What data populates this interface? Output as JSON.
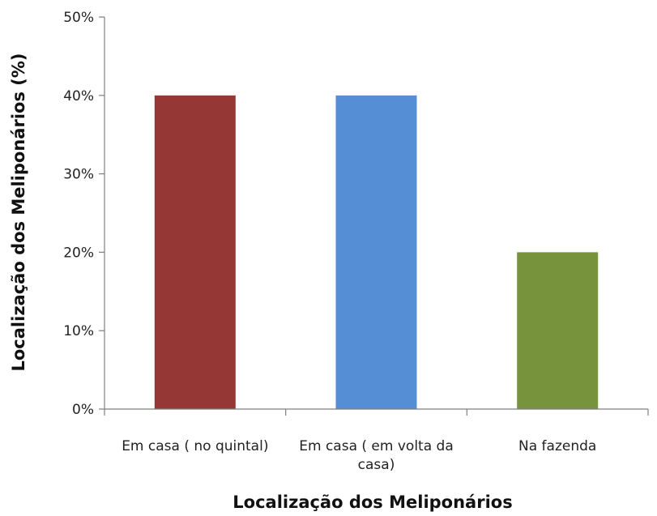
{
  "chart_data": {
    "type": "bar",
    "title": "",
    "xlabel": "Localização dos Meliponários",
    "ylabel": "Localização dos Meliponários  (%)",
    "categories": [
      [
        "Em casa ( no quintal)"
      ],
      [
        "Em casa ( em volta da",
        "casa)"
      ],
      [
        "Na fazenda"
      ]
    ],
    "values": [
      0.4,
      0.4,
      0.2
    ],
    "colors": [
      "#953735",
      "#558ED5",
      "#77933C"
    ],
    "ylim": [
      0,
      0.5
    ],
    "yticks": [
      {
        "value": 0.0,
        "label": "0%"
      },
      {
        "value": 0.1,
        "label": "10%"
      },
      {
        "value": 0.2,
        "label": "20%"
      },
      {
        "value": 0.3,
        "label": "30%"
      },
      {
        "value": 0.4,
        "label": "40%"
      },
      {
        "value": 0.5,
        "label": "50%"
      }
    ],
    "grid": false,
    "legend": "none"
  }
}
